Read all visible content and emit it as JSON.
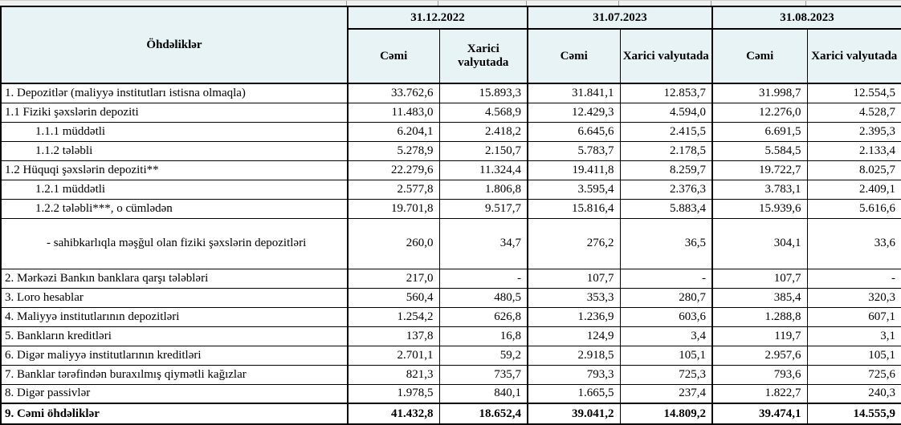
{
  "table": {
    "label_header": "Öhdəliklər",
    "groups": [
      {
        "date": "31.12.2022",
        "sub": [
          "Cəmi",
          "Xarici valyutada"
        ]
      },
      {
        "date": "31.07.2023",
        "sub": [
          "Cəmi",
          "Xarici valyutada"
        ]
      },
      {
        "date": "31.08.2023",
        "sub": [
          "Cəmi",
          "Xarici valyutada"
        ]
      }
    ],
    "colors": {
      "header_bg": "#e8f3f6",
      "border": "#000000"
    },
    "rows": [
      {
        "label": "1. Depozitlər (maliyyə institutları istisna olmaqla)",
        "indent": 0,
        "style": "normal",
        "values": [
          "33.762,6",
          "15.893,3",
          "31.841,1",
          "12.853,7",
          "31.998,7",
          "12.554,5"
        ]
      },
      {
        "label": "1.1 Fiziki şəxslərin depoziti",
        "indent": 0,
        "style": "normal",
        "values": [
          "11.483,0",
          "4.568,9",
          "12.429,3",
          "4.594,0",
          "12.276,0",
          "4.528,7"
        ]
      },
      {
        "label": "1.1.1 müddətli",
        "indent": 1,
        "style": "normal",
        "values": [
          "6.204,1",
          "2.418,2",
          "6.645,6",
          "2.415,5",
          "6.691,5",
          "2.395,3"
        ]
      },
      {
        "label": "1.1.2 tələbli",
        "indent": 1,
        "style": "normal",
        "values": [
          "5.278,9",
          "2.150,7",
          "5.783,7",
          "2.178,5",
          "5.584,5",
          "2.133,4"
        ]
      },
      {
        "label": "1.2 Hüquqi şəxslərin depoziti**",
        "indent": 0,
        "style": "normal",
        "values": [
          "22.279,6",
          "11.324,4",
          "19.411,8",
          "8.259,7",
          "19.722,7",
          "8.025,7"
        ]
      },
      {
        "label": "1.2.1 müddətli",
        "indent": 1,
        "style": "normal",
        "values": [
          "2.577,8",
          "1.806,8",
          "3.595,4",
          "2.376,3",
          "3.783,1",
          "2.409,1"
        ]
      },
      {
        "label": "1.2.2 tələbli***, o cümlədən",
        "indent": 1,
        "style": "normal",
        "values": [
          "19.701,8",
          "9.517,7",
          "15.816,4",
          "5.883,4",
          "15.939,6",
          "5.616,6"
        ]
      },
      {
        "label": "- sahibkarlıqla məşğul olan fiziki şəxslərin depozitləri",
        "indent": 2,
        "style": "tall",
        "values": [
          "260,0",
          "34,7",
          "276,2",
          "36,5",
          "304,1",
          "33,6"
        ]
      },
      {
        "label": "2. Mərkəzi Bankın banklara qarşı tələbləri",
        "indent": 0,
        "style": "normal",
        "values": [
          "217,0",
          "-",
          "107,7",
          "-",
          "107,7",
          "-"
        ]
      },
      {
        "label": "3. Loro hesablar",
        "indent": 0,
        "style": "normal",
        "values": [
          "560,4",
          "480,5",
          "353,3",
          "280,7",
          "385,4",
          "320,3"
        ]
      },
      {
        "label": "4. Maliyyə institutlarının  depozitləri",
        "indent": 0,
        "style": "normal",
        "values": [
          "1.254,2",
          "626,8",
          "1.236,9",
          "603,6",
          "1.288,8",
          "607,1"
        ]
      },
      {
        "label": "5. Bankların kreditləri",
        "indent": 0,
        "style": "normal",
        "values": [
          "137,8",
          "16,8",
          "124,9",
          "3,4",
          "119,7",
          "3,1"
        ]
      },
      {
        "label": "6. Digər maliyyə institutlarının kreditləri",
        "indent": 0,
        "style": "normal",
        "values": [
          "2.701,1",
          "59,2",
          "2.918,5",
          "105,1",
          "2.957,6",
          "105,1"
        ]
      },
      {
        "label": "7. Banklar tərəfindən buraxılmış qiymətli kağızlar",
        "indent": 0,
        "style": "normal",
        "values": [
          "821,3",
          "735,7",
          "793,3",
          "725,3",
          "793,6",
          "725,6"
        ]
      },
      {
        "label": "8. Digər passivlər",
        "indent": 0,
        "style": "normal",
        "values": [
          "1.978,5",
          "840,1",
          "1.665,5",
          "237,4",
          "1.822,7",
          "240,3"
        ]
      },
      {
        "label": "9. Cəmi öhdəliklər",
        "indent": 0,
        "style": "total",
        "values": [
          "41.432,8",
          "18.652,4",
          "39.041,2",
          "14.809,2",
          "39.474,1",
          "14.555,9"
        ]
      }
    ]
  }
}
